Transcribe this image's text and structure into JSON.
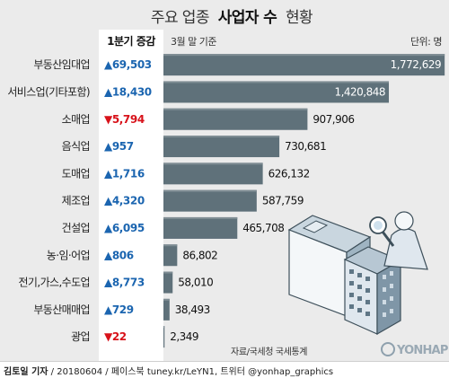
{
  "header": {
    "title_plain": "주요 업종",
    "title_bold": "사업자 수",
    "title_end": "현황",
    "change_col": "1분기 증감",
    "basis": "3월 말 기준",
    "unit": "단위: 명"
  },
  "colors": {
    "bar": "#5f717a",
    "bar_top": "#7f8d94",
    "up": "#1b65b0",
    "down": "#d8121a",
    "background": "#ebebeb",
    "change_col_bg": "#ffffff"
  },
  "chart_data": {
    "type": "bar",
    "orientation": "horizontal",
    "categories": [
      "부동산임대업",
      "서비스업(기타포함)",
      "소매업",
      "음식업",
      "도매업",
      "제조업",
      "건설업",
      "농·임·어업",
      "전기,가스,수도업",
      "부동산매매업",
      "광업"
    ],
    "values": [
      1772629,
      1420848,
      907906,
      730681,
      626132,
      587759,
      465708,
      86802,
      58010,
      38493,
      2349
    ],
    "value_labels": [
      "1,772,629",
      "1,420,848",
      "907,906",
      "730,681",
      "626,132",
      "587,759",
      "465,708",
      "86,802",
      "58,010",
      "38,493",
      "2,349"
    ],
    "changes": [
      69503,
      18430,
      -5794,
      957,
      1716,
      4320,
      6095,
      806,
      8773,
      729,
      -22
    ],
    "change_labels": [
      "▲69,503",
      "▲18,430",
      "▼5,794",
      "▲957",
      "▲1,716",
      "▲4,320",
      "▲6,095",
      "▲806",
      "▲8,773",
      "▲729",
      "▼22"
    ],
    "xlim": [
      0,
      1800000
    ],
    "grid": false,
    "legend": "none"
  },
  "source": "자료/국세청 국세통계",
  "credit": {
    "reporter": "김토일 기자",
    "rest": " / 20180604 / 페이스북 tuney.kr/LeYN1, 트위터 @yonhap_graphics"
  },
  "watermark": "YONHAP NEWS",
  "icons": [
    "office-building-illustration",
    "magnifier-person-illustration",
    "yonhap-logo"
  ]
}
